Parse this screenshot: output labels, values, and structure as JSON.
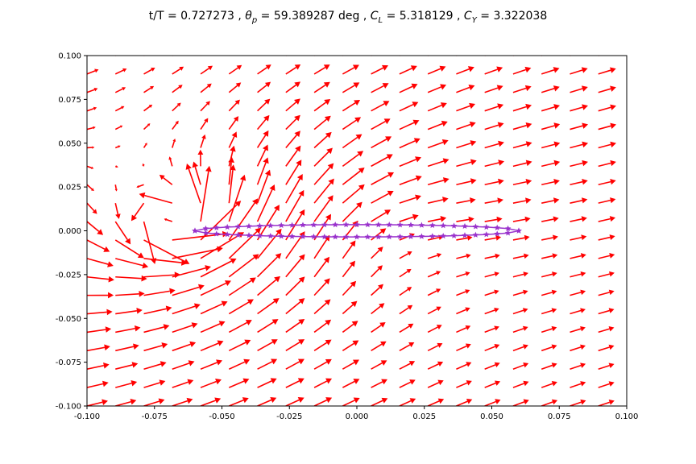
{
  "title": {
    "prefix": "t/T = 0.727273 , ",
    "theta_sym": "θ",
    "theta_sub": "p",
    "theta_val": " = 59.389287 deg , ",
    "cl_sym": "C",
    "cl_sub": "L",
    "cl_val": " = 5.318129 , ",
    "cy_sym": "C",
    "cy_sub": "Y",
    "cy_val": " = 3.322038"
  },
  "chart_data": {
    "type": "quiver",
    "xlim": [
      -0.1,
      0.1
    ],
    "ylim": [
      -0.1,
      0.1
    ],
    "xticks": [
      "-0.100",
      "-0.075",
      "-0.050",
      "-0.025",
      "0.000",
      "0.025",
      "0.050",
      "0.075",
      "0.100"
    ],
    "yticks": [
      "-0.100",
      "-0.075",
      "-0.050",
      "-0.025",
      "0.000",
      "0.025",
      "0.050",
      "0.075",
      "0.100"
    ],
    "grid": false,
    "colors": {
      "arrows": "#ff0000",
      "airfoil_line": "#9932cc",
      "airfoil_markers": "#9932cc",
      "axes": "#000000"
    },
    "vector_field": {
      "x_range": [
        -0.1,
        0.1
      ],
      "y_range": [
        -0.1,
        0.1
      ],
      "nx": 20,
      "ny": 20,
      "freestream": [
        0.0055,
        0.0015
      ],
      "vortices": [
        {
          "x": -0.068,
          "y": 0.004,
          "strength": 0.00025,
          "core": 0.006
        },
        {
          "x": 0.0,
          "y": 0.0,
          "strength": -0.00018,
          "core": 0.03
        }
      ]
    },
    "airfoil": {
      "chord_x": [
        -0.06,
        0.06
      ],
      "thickness": 0.0035,
      "markers": 30
    }
  }
}
